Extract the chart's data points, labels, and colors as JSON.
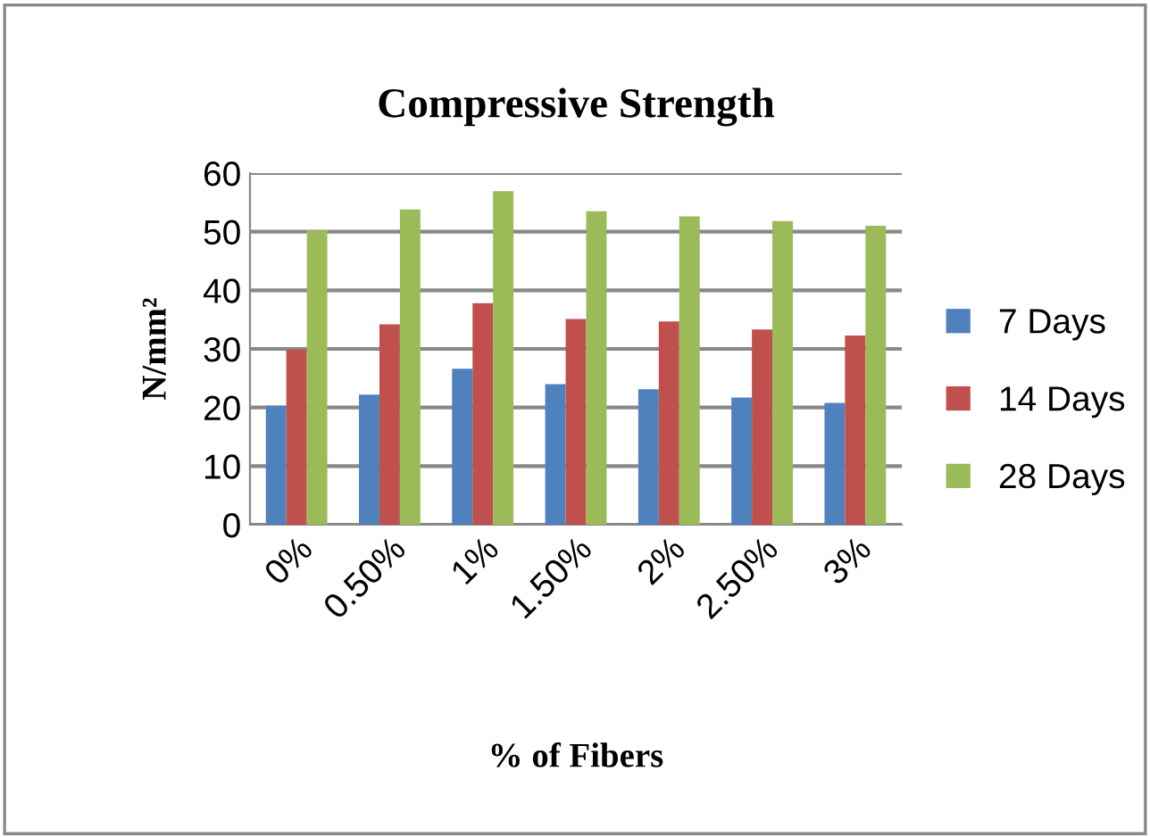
{
  "chart_data": {
    "type": "bar",
    "title": "Compressive Strength",
    "xlabel": "% of Fibers",
    "ylabel": "N/mm²",
    "categories": [
      "0%",
      "0.50%",
      "1%",
      "1.50%",
      "2%",
      "2.50%",
      "3%"
    ],
    "series": [
      {
        "name": "7 Days",
        "color": "#4f81bd",
        "values": [
          20.3,
          22.2,
          26.6,
          24.0,
          23.1,
          21.7,
          20.8
        ]
      },
      {
        "name": "14 Days",
        "color": "#c0504d",
        "values": [
          29.9,
          34.2,
          37.8,
          35.1,
          34.7,
          33.3,
          32.3
        ]
      },
      {
        "name": "28 Days",
        "color": "#9bbb59",
        "values": [
          50.2,
          53.8,
          56.9,
          53.5,
          52.6,
          51.8,
          51.0
        ]
      }
    ],
    "ylim": [
      0,
      60
    ],
    "yticks": [
      0,
      10,
      20,
      30,
      40,
      50,
      60
    ],
    "grid": "y",
    "legend": "right"
  }
}
